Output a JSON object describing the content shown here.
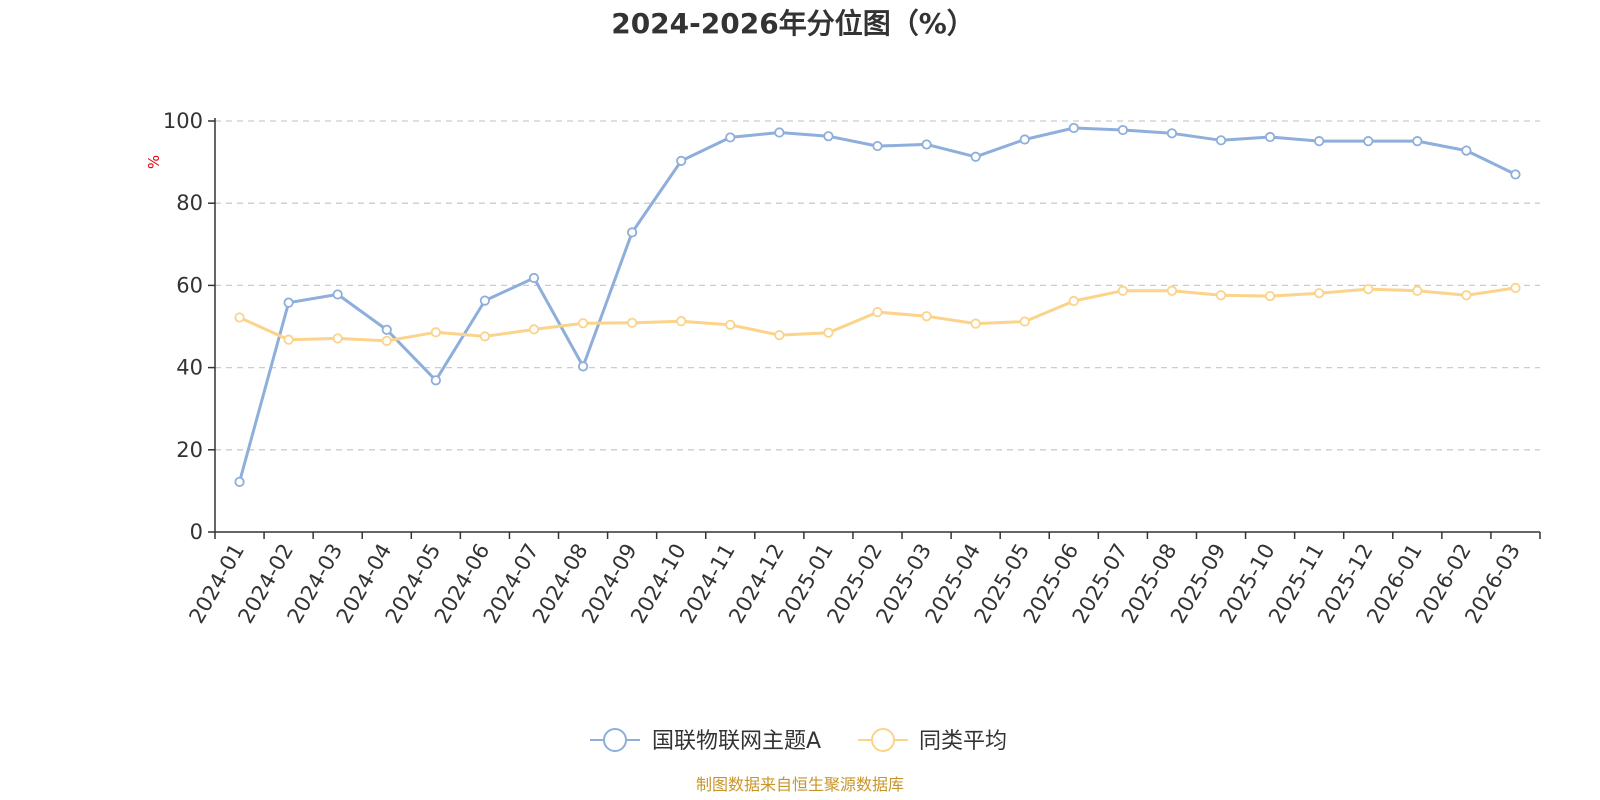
{
  "chart_data": {
    "type": "line",
    "title": "2024-2026年分位图（%）",
    "ylabel": "%",
    "ylim": [
      0,
      100
    ],
    "yticks": [
      0,
      20,
      40,
      60,
      80,
      100
    ],
    "grid": true,
    "legend_position": "bottom-center",
    "categories": [
      "2024-01",
      "2024-02",
      "2024-03",
      "2024-04",
      "2024-05",
      "2024-06",
      "2024-07",
      "2024-08",
      "2024-09",
      "2024-10",
      "2024-11",
      "2024-12",
      "2025-01",
      "2025-02",
      "2025-03",
      "2025-04",
      "2025-05",
      "2025-06",
      "2025-07",
      "2025-08",
      "2025-09",
      "2025-10",
      "2025-11",
      "2025-12",
      "2026-01",
      "2026-02",
      "2026-03"
    ],
    "series": [
      {
        "name": "国联物联网主题A",
        "color": "#8eaedb",
        "values": [
          12.2,
          55.8,
          57.8,
          49.2,
          36.9,
          56.3,
          61.8,
          40.3,
          72.9,
          90.3,
          96.0,
          97.2,
          96.3,
          93.9,
          94.3,
          91.3,
          95.5,
          98.3,
          97.8,
          97.0,
          95.3,
          96.1,
          95.1,
          95.1,
          95.1,
          92.8,
          87.0
        ]
      },
      {
        "name": "同类平均",
        "color": "#fbd38b",
        "values": [
          52.2,
          46.8,
          47.1,
          46.5,
          48.6,
          47.6,
          49.3,
          50.8,
          50.9,
          51.3,
          50.4,
          47.9,
          48.5,
          53.5,
          52.5,
          50.7,
          51.2,
          56.2,
          58.7,
          58.7,
          57.6,
          57.4,
          58.1,
          59.1,
          58.7,
          57.6,
          59.4
        ]
      }
    ]
  },
  "footer": "制图数据来自恒生聚源数据库"
}
